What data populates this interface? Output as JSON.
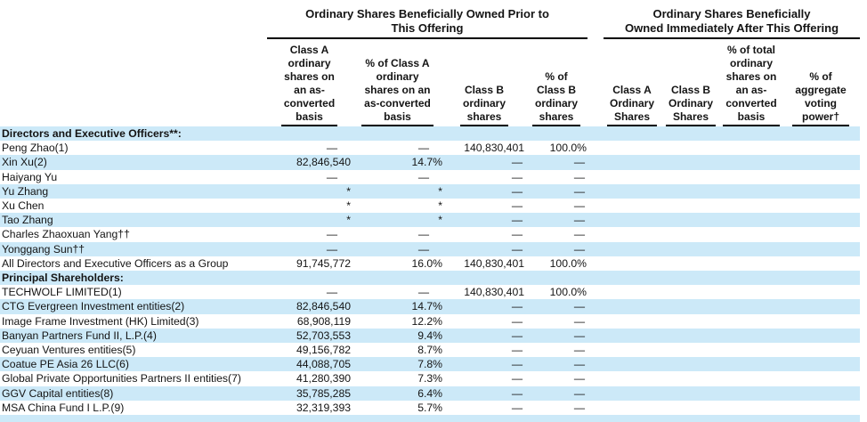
{
  "colors": {
    "row_alt": "#cce9f8",
    "rule": "#000000",
    "text": "#141414"
  },
  "table": {
    "group_headers": [
      {
        "label": "Ordinary Shares Beneficially Owned Prior to\nThis Offering"
      },
      {
        "label": "Ordinary Shares Beneficially\nOwned Immediately After This Offering"
      }
    ],
    "columns": [
      {
        "label": "Class A\nordinary\nshares on\nan as-\nconverted\nbasis"
      },
      {
        "label": "% of Class A\nordinary\nshares on an\nas-converted\nbasis"
      },
      {
        "label": "Class B\nordinary\nshares"
      },
      {
        "label": "% of\nClass B\nordinary\nshares"
      },
      {
        "label": "Class A\nOrdinary\nShares"
      },
      {
        "label": "Class B\nOrdinary\nShares"
      },
      {
        "label": "% of total\nordinary\nshares on\nan as-\nconverted\nbasis"
      },
      {
        "label": "% of\naggregate\nvoting\npower†"
      }
    ],
    "rows": [
      {
        "name": "Directors and Executive Officers**:",
        "section": true,
        "values": [
          "",
          "",
          "",
          "",
          "",
          "",
          "",
          ""
        ]
      },
      {
        "name": "Peng Zhao(1)",
        "section": false,
        "values": [
          "—",
          "—",
          "140,830,401",
          "100.0%",
          "",
          "",
          "",
          ""
        ]
      },
      {
        "name": "Xin Xu(2)",
        "section": false,
        "values": [
          "82,846,540",
          "14.7%",
          "—",
          "—",
          "",
          "",
          "",
          ""
        ]
      },
      {
        "name": "Haiyang Yu",
        "section": false,
        "values": [
          "—",
          "—",
          "—",
          "—",
          "",
          "",
          "",
          ""
        ]
      },
      {
        "name": "Yu Zhang",
        "section": false,
        "values": [
          "*",
          "*",
          "—",
          "—",
          "",
          "",
          "",
          ""
        ]
      },
      {
        "name": "Xu Chen",
        "section": false,
        "values": [
          "*",
          "*",
          "—",
          "—",
          "",
          "",
          "",
          ""
        ]
      },
      {
        "name": "Tao Zhang",
        "section": false,
        "values": [
          "*",
          "*",
          "—",
          "—",
          "",
          "",
          "",
          ""
        ]
      },
      {
        "name": "Charles Zhaoxuan Yang††",
        "section": false,
        "values": [
          "—",
          "—",
          "—",
          "—",
          "",
          "",
          "",
          ""
        ]
      },
      {
        "name": "Yonggang Sun††",
        "section": false,
        "values": [
          "—",
          "—",
          "—",
          "—",
          "",
          "",
          "",
          ""
        ]
      },
      {
        "name": "All Directors and Executive Officers as a Group",
        "section": false,
        "values": [
          "91,745,772",
          "16.0%",
          "140,830,401",
          "100.0%",
          "",
          "",
          "",
          ""
        ]
      },
      {
        "name": "Principal Shareholders:",
        "section": true,
        "values": [
          "",
          "",
          "",
          "",
          "",
          "",
          "",
          ""
        ]
      },
      {
        "name": "TECHWOLF LIMITED(1)",
        "section": false,
        "values": [
          "—",
          "—",
          "140,830,401",
          "100.0%",
          "",
          "",
          "",
          ""
        ]
      },
      {
        "name": "CTG Evergreen Investment entities(2)",
        "section": false,
        "values": [
          "82,846,540",
          "14.7%",
          "—",
          "—",
          "",
          "",
          "",
          ""
        ]
      },
      {
        "name": "Image Frame Investment (HK) Limited(3)",
        "section": false,
        "values": [
          "68,908,119",
          "12.2%",
          "—",
          "—",
          "",
          "",
          "",
          ""
        ]
      },
      {
        "name": "Banyan Partners Fund II, L.P.(4)",
        "section": false,
        "values": [
          "52,703,553",
          "9.4%",
          "—",
          "—",
          "",
          "",
          "",
          ""
        ]
      },
      {
        "name": "Ceyuan Ventures entities(5)",
        "section": false,
        "values": [
          "49,156,782",
          "8.7%",
          "—",
          "—",
          "",
          "",
          "",
          ""
        ]
      },
      {
        "name": "Coatue PE Asia 26 LLC(6)",
        "section": false,
        "values": [
          "44,088,705",
          "7.8%",
          "—",
          "—",
          "",
          "",
          "",
          ""
        ]
      },
      {
        "name": "Global Private Opportunities Partners II entities(7)",
        "section": false,
        "values": [
          "41,280,390",
          "7.3%",
          "—",
          "—",
          "",
          "",
          "",
          ""
        ]
      },
      {
        "name": "GGV Capital entities(8)",
        "section": false,
        "values": [
          "35,785,285",
          "6.4%",
          "—",
          "—",
          "",
          "",
          "",
          ""
        ]
      },
      {
        "name": "MSA China Fund I L.P.(9)",
        "section": false,
        "values": [
          "32,319,393",
          "5.7%",
          "—",
          "—",
          "",
          "",
          "",
          ""
        ]
      }
    ]
  }
}
